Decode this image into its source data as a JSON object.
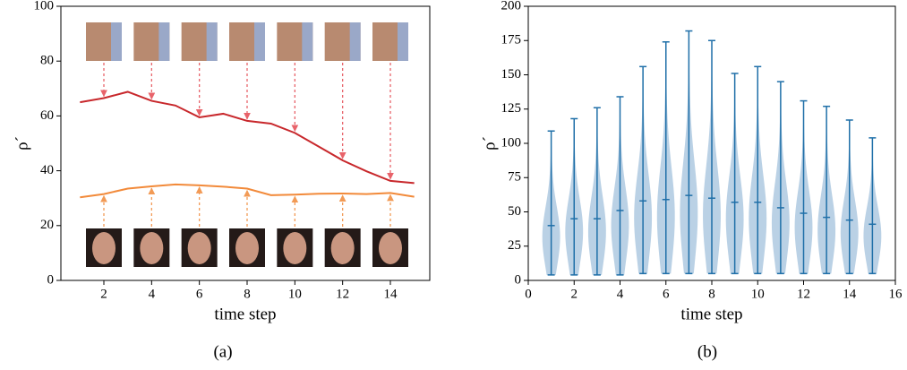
{
  "chart_data": [
    {
      "type": "line",
      "x": [
        1,
        2,
        3,
        4,
        5,
        6,
        7,
        8,
        9,
        10,
        11,
        12,
        13,
        14,
        15
      ],
      "series": [
        {
          "color": "#c8282c",
          "values": [
            65,
            66.5,
            68.8,
            65.5,
            63.8,
            59.5,
            60.8,
            58.2,
            57.2,
            53.8,
            48.8,
            43.8,
            39.8,
            36.3,
            35.5
          ]
        },
        {
          "color": "#f28a3a",
          "values": [
            30.3,
            31.5,
            33.5,
            34.3,
            35.0,
            34.7,
            34.2,
            33.5,
            31.1,
            31.3,
            31.6,
            31.7,
            31.5,
            31.9,
            30.5
          ]
        }
      ],
      "xlim": [
        0.2,
        15.65
      ],
      "xticks": [
        2,
        4,
        6,
        8,
        10,
        12,
        14
      ],
      "ylim": [
        0,
        100
      ],
      "yticks": [
        0,
        20,
        40,
        60,
        80,
        100
      ],
      "xlabel": "time  step",
      "ylabel": "ρ´",
      "caption": "(a)"
    },
    {
      "type": "violin",
      "x": [
        1,
        2,
        3,
        4,
        5,
        6,
        7,
        8,
        9,
        10,
        11,
        12,
        13,
        14,
        15
      ],
      "series": [
        {
          "color": "#1f6fa8",
          "min": [
            4,
            4,
            4,
            4,
            5,
            5,
            5,
            5,
            5,
            5,
            5,
            5,
            5,
            5,
            5
          ],
          "median": [
            40,
            45,
            45,
            51,
            58,
            59,
            62,
            60,
            57,
            57,
            53,
            49,
            46,
            44,
            41
          ],
          "max": [
            109,
            118,
            126,
            134,
            156,
            174,
            182,
            175,
            151,
            156,
            145,
            131,
            127,
            117,
            104
          ]
        }
      ],
      "xlim": [
        0,
        16
      ],
      "xticks": [
        0,
        2,
        4,
        6,
        8,
        10,
        12,
        14,
        16
      ],
      "ylim": [
        0,
        200
      ],
      "yticks": [
        0,
        25,
        50,
        75,
        100,
        125,
        150,
        175,
        200
      ],
      "xlabel": "time  step",
      "ylabel": "ρ´",
      "caption": "(b)"
    }
  ]
}
